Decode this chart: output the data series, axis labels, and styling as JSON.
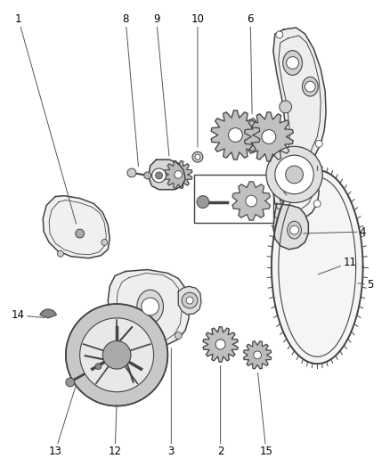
{
  "background_color": "#ffffff",
  "line_color": "#444444",
  "label_color": "#000000",
  "label_fontsize": 8.5,
  "fig_width": 4.38,
  "fig_height": 5.33,
  "dpi": 100
}
